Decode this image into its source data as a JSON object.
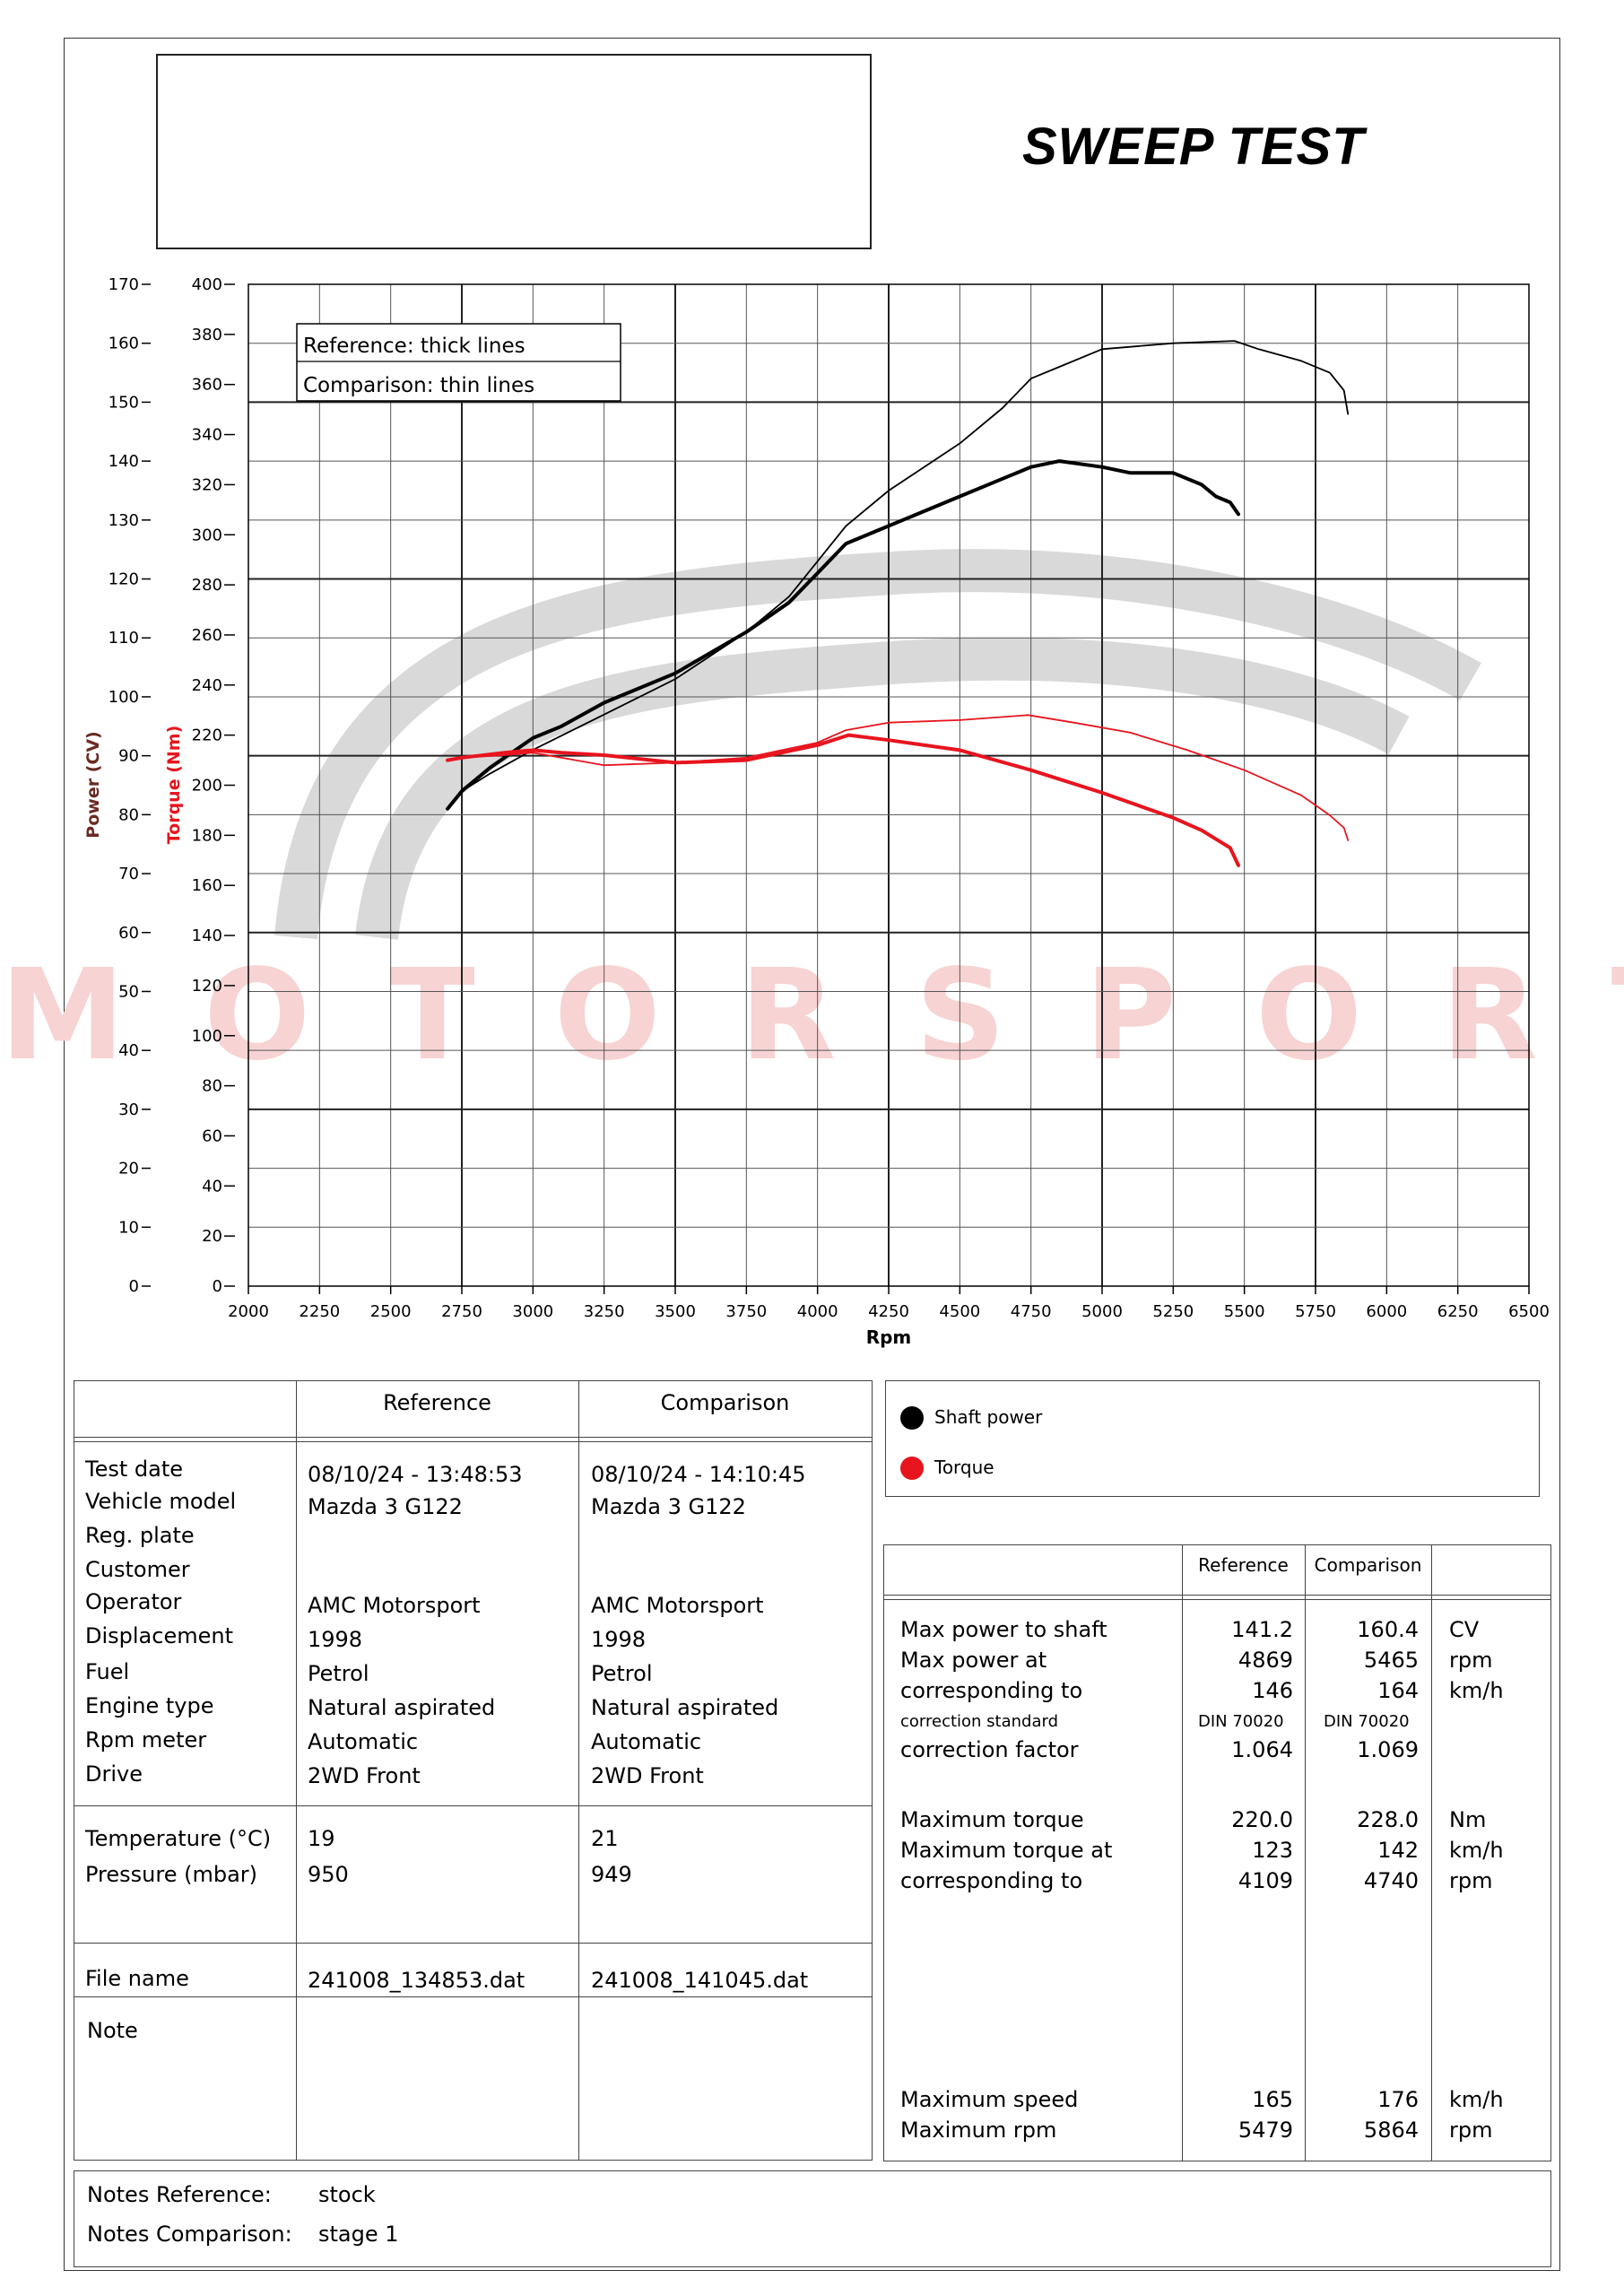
{
  "header": {
    "title": "SWEEP TEST"
  },
  "colors": {
    "power": "#000000",
    "torque": "#e8141e",
    "watermark": "#d9d9d9",
    "watermark_red": "#f7d3d3"
  },
  "watermark": {
    "logo": "amc",
    "sub": "MOTORSPORT"
  },
  "chart_data": {
    "type": "line",
    "x_label": "Rpm",
    "power_axis_label": "Power (CV)",
    "torque_axis_label": "Torque (Nm)",
    "xlim": [
      2000,
      6500
    ],
    "x_ticks": [
      "2000",
      "2250",
      "2500",
      "2750",
      "3000",
      "3250",
      "3500",
      "3750",
      "4000",
      "4250",
      "4500",
      "4750",
      "5000",
      "5250",
      "5500",
      "5750",
      "6000",
      "6250",
      "6500"
    ],
    "power_ylim": [
      0,
      170
    ],
    "power_ticks": [
      "0",
      "10",
      "20",
      "30",
      "40",
      "50",
      "60",
      "70",
      "80",
      "90",
      "100",
      "110",
      "120",
      "130",
      "140",
      "150",
      "160",
      "170"
    ],
    "torque_ylim": [
      0,
      400
    ],
    "torque_ticks": [
      "0",
      "20",
      "40",
      "60",
      "80",
      "100",
      "120",
      "140",
      "160",
      "180",
      "200",
      "220",
      "240",
      "260",
      "280",
      "300",
      "320",
      "340",
      "360",
      "380",
      "400"
    ],
    "legend_box": {
      "reference": "Reference: thick lines",
      "comparison": "Comparison: thin lines"
    },
    "series": [
      {
        "name": "Shaft power",
        "run": "Reference",
        "unit": "CV",
        "x": [
          2700,
          2750,
          2850,
          3000,
          3100,
          3250,
          3500,
          3750,
          3900,
          4000,
          4100,
          4250,
          4500,
          4650,
          4750,
          4850,
          5000,
          5100,
          5250,
          5350,
          5400,
          5450,
          5479
        ],
        "y": [
          81,
          84,
          88,
          93,
          95,
          99,
          104,
          111,
          116,
          121,
          126,
          129,
          134,
          137,
          139,
          140,
          139,
          138,
          138,
          136,
          134,
          133,
          131
        ]
      },
      {
        "name": "Shaft power",
        "run": "Comparison",
        "unit": "CV",
        "x": [
          2700,
          2750,
          2850,
          3000,
          3250,
          3500,
          3750,
          3900,
          4000,
          4100,
          4250,
          4500,
          4650,
          4750,
          4850,
          5000,
          5250,
          5465,
          5550,
          5700,
          5800,
          5850,
          5864
        ],
        "y": [
          81,
          84,
          87,
          91,
          97,
          103,
          111,
          117,
          123,
          129,
          135,
          143,
          149,
          154,
          156,
          159,
          160,
          160.4,
          159,
          157,
          155,
          152,
          148
        ]
      },
      {
        "name": "Torque",
        "run": "Reference",
        "unit": "Nm",
        "x": [
          2700,
          2750,
          2900,
          3000,
          3100,
          3250,
          3500,
          3750,
          4000,
          4109,
          4250,
          4500,
          4750,
          5000,
          5250,
          5350,
          5450,
          5479
        ],
        "y": [
          210,
          211,
          213,
          214,
          213,
          212,
          209,
          210,
          216,
          220,
          218,
          214,
          206,
          197,
          187,
          182,
          175,
          168
        ]
      },
      {
        "name": "Torque",
        "run": "Comparison",
        "unit": "Nm",
        "x": [
          2700,
          2750,
          2900,
          3000,
          3250,
          3500,
          3750,
          4000,
          4100,
          4250,
          4500,
          4740,
          4900,
          5100,
          5300,
          5500,
          5700,
          5800,
          5850,
          5864
        ],
        "y": [
          210,
          211,
          212,
          213,
          208,
          209,
          211,
          217,
          222,
          225,
          226,
          228,
          225,
          221,
          214,
          206,
          196,
          188,
          183,
          178
        ]
      }
    ]
  },
  "legend": {
    "items": [
      {
        "label": "Shaft power",
        "color": "#000000"
      },
      {
        "label": "Torque",
        "color": "#e8141e"
      }
    ]
  },
  "info_table": {
    "col_reference": "Reference",
    "col_comparison": "Comparison",
    "labels": {
      "test_date": "Test date",
      "vehicle_model": "Vehicle model",
      "reg_plate": "Reg. plate",
      "customer": "Customer",
      "operator": "Operator",
      "displacement": "Displacement",
      "fuel": "Fuel",
      "engine_type": "Engine type",
      "rpm_meter": "Rpm meter",
      "drive": "Drive",
      "temperature": "Temperature (°C)",
      "pressure": "Pressure (mbar)",
      "file_name": "File name",
      "note": "Note"
    },
    "reference": {
      "test_date": "08/10/24 - 13:48:53",
      "vehicle_model": "Mazda 3 G122",
      "operator": "AMC Motorsport",
      "displacement": "1998",
      "fuel": "Petrol",
      "engine_type": "Natural aspirated",
      "rpm_meter": "Automatic",
      "drive": "2WD Front",
      "temperature": "19",
      "pressure": "950",
      "file_name": "241008_134853.dat"
    },
    "comparison": {
      "test_date": "08/10/24 - 14:10:45",
      "vehicle_model": "Mazda 3 G122",
      "operator": "AMC Motorsport",
      "displacement": "1998",
      "fuel": "Petrol",
      "engine_type": "Natural aspirated",
      "rpm_meter": "Automatic",
      "drive": "2WD Front",
      "temperature": "21",
      "pressure": "949",
      "file_name": "241008_141045.dat"
    }
  },
  "results": {
    "col_reference": "Reference",
    "col_comparison": "Comparison",
    "rows": [
      {
        "label": "Max power to shaft",
        "ref": "141.2",
        "cmp": "160.4",
        "unit": "CV"
      },
      {
        "label": "Max power at",
        "ref": "4869",
        "cmp": "5465",
        "unit": "rpm"
      },
      {
        "label": "corresponding to",
        "ref": "146",
        "cmp": "164",
        "unit": "km/h"
      },
      {
        "label": "correction standard",
        "ref": "DIN 70020",
        "cmp": "DIN 70020",
        "unit": ""
      },
      {
        "label": "correction factor",
        "ref": "1.064",
        "cmp": "1.069",
        "unit": ""
      },
      {
        "label": "Maximum torque",
        "ref": "220.0",
        "cmp": "228.0",
        "unit": "Nm"
      },
      {
        "label": "Maximum torque at",
        "ref": "123",
        "cmp": "142",
        "unit": "km/h"
      },
      {
        "label": "corresponding to",
        "ref": "4109",
        "cmp": "4740",
        "unit": "rpm"
      },
      {
        "label": "Maximum speed",
        "ref": "165",
        "cmp": "176",
        "unit": "km/h"
      },
      {
        "label": "Maximum rpm",
        "ref": "5479",
        "cmp": "5864",
        "unit": "rpm"
      }
    ]
  },
  "notes": {
    "reference_label": "Notes Reference:",
    "reference_value": "stock",
    "comparison_label": "Notes Comparison:",
    "comparison_value": "stage 1"
  }
}
